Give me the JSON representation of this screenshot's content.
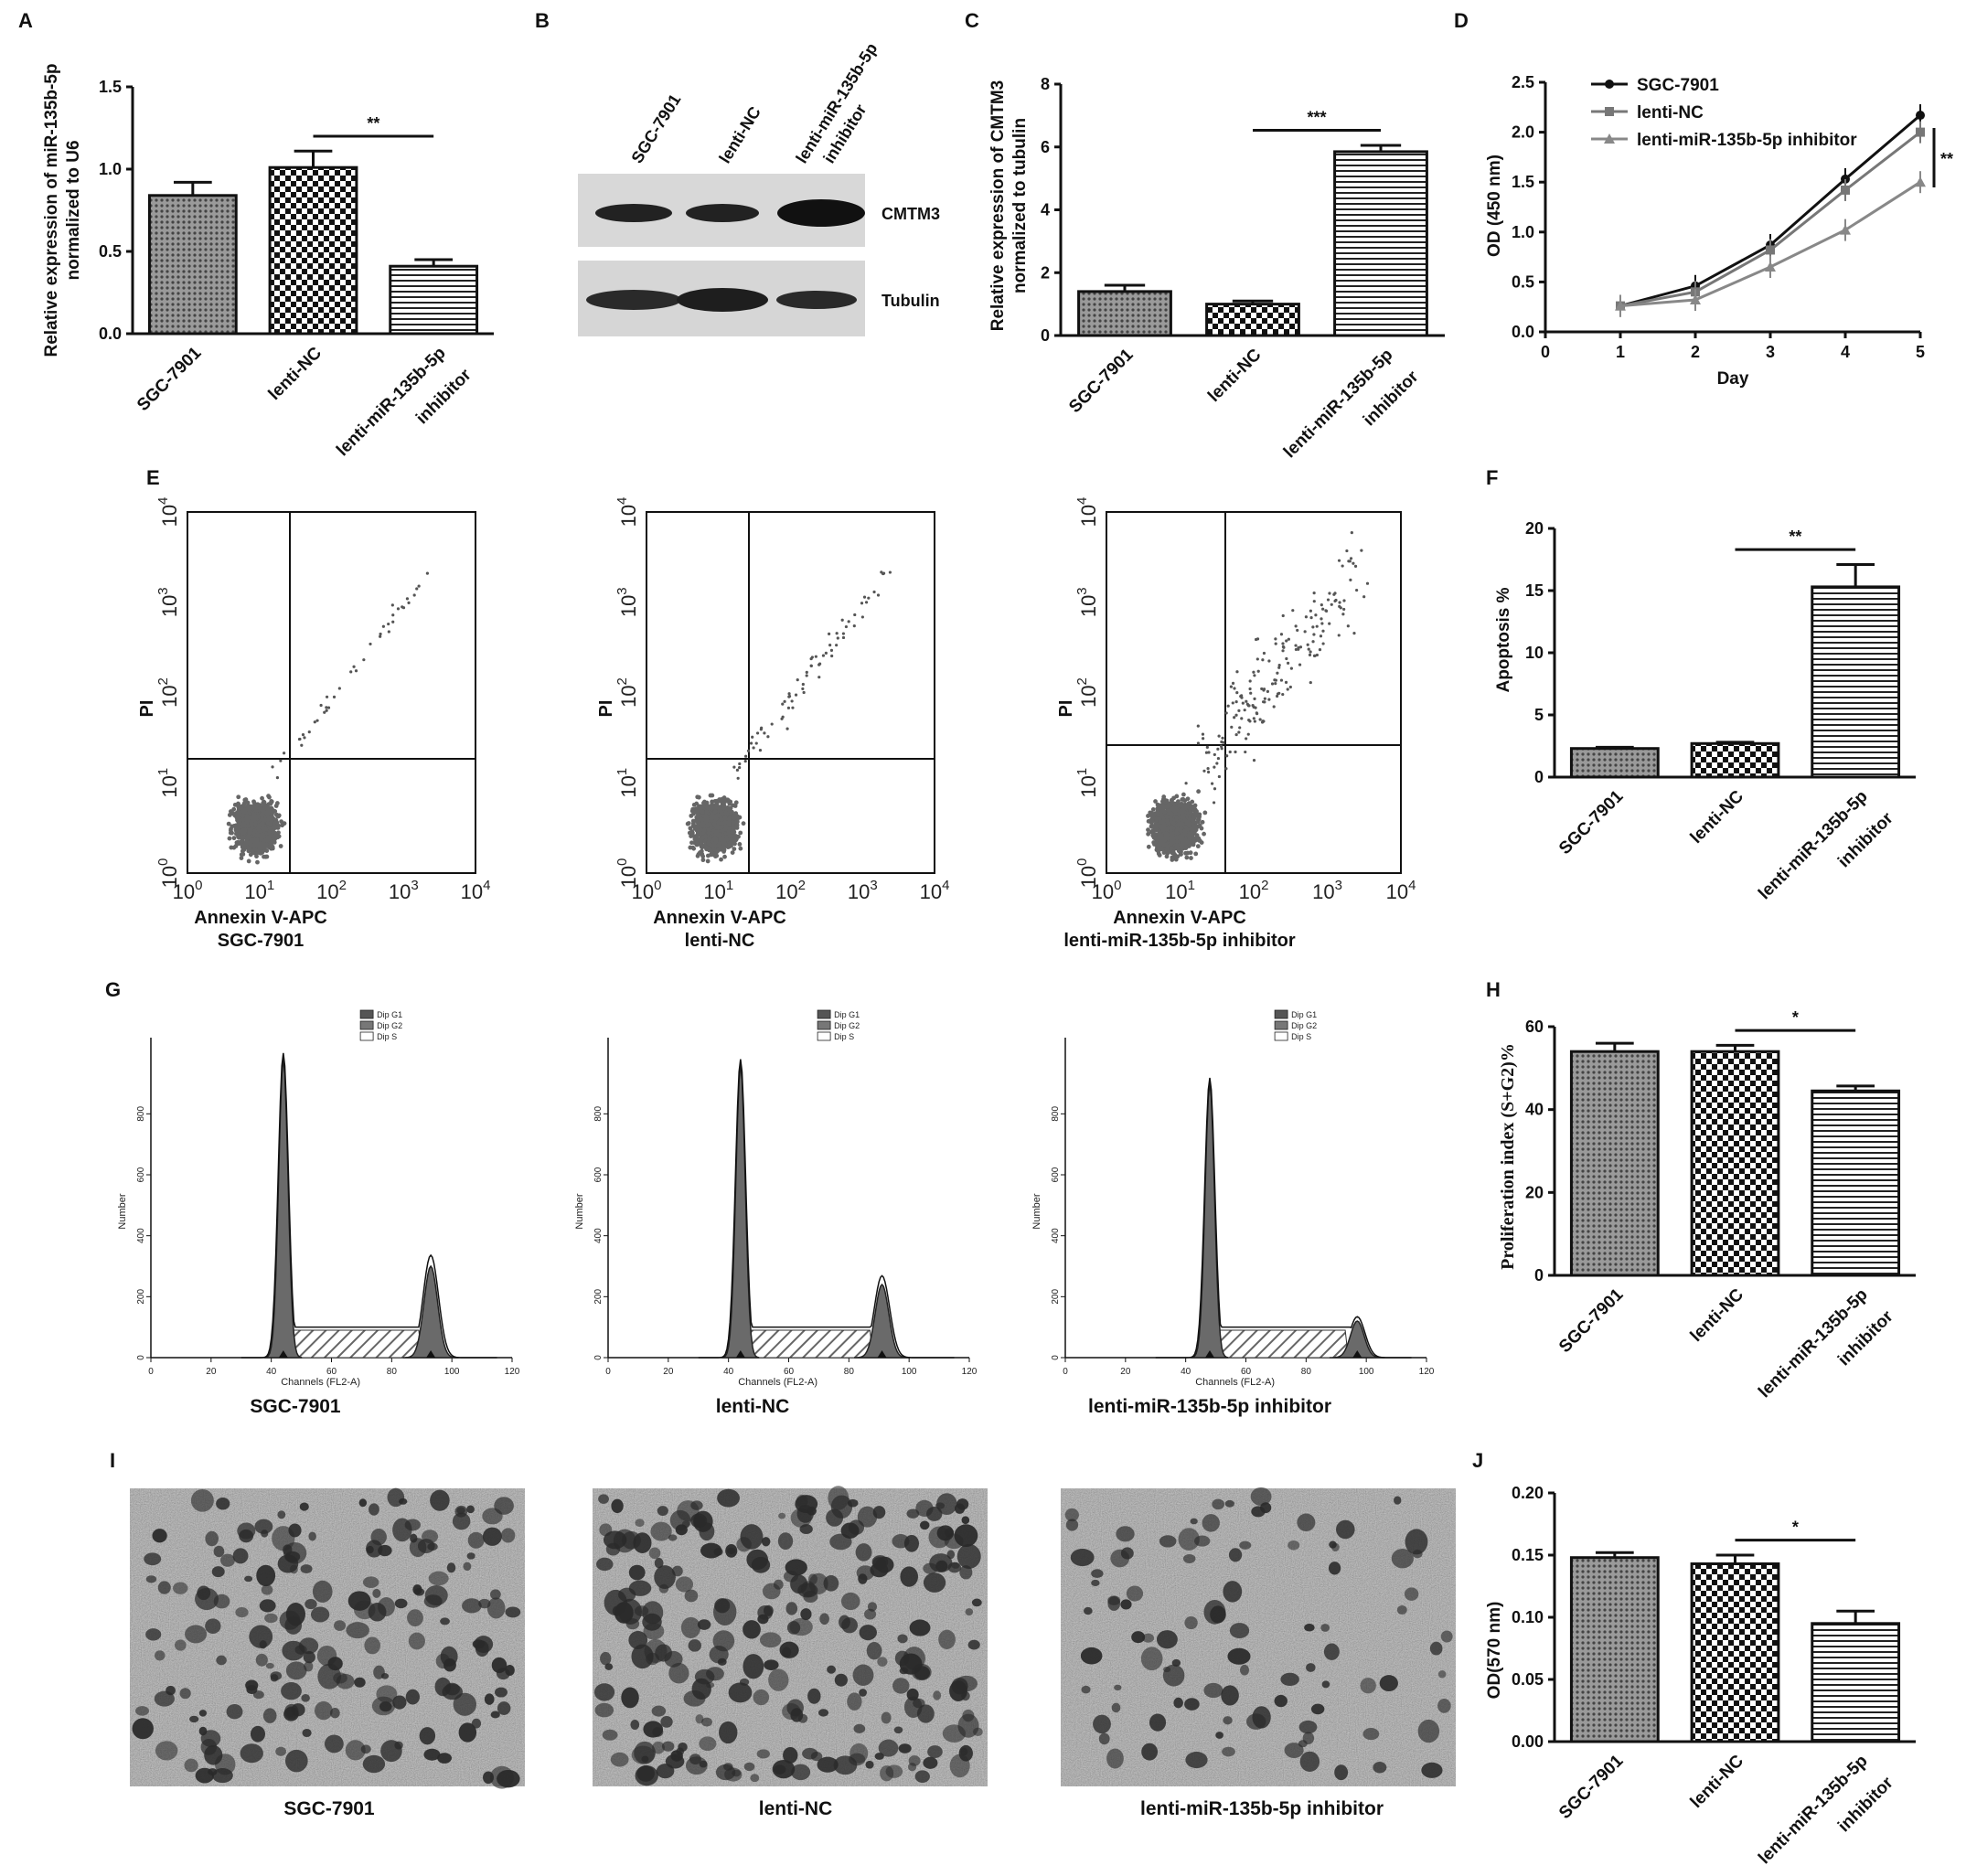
{
  "panel_letters": [
    "A",
    "B",
    "C",
    "D",
    "E",
    "F",
    "G",
    "H",
    "I",
    "J"
  ],
  "groups": [
    "SGC-7901",
    "lenti-NC",
    "lenti-miR-135b-5p",
    "inhibitor"
  ],
  "group_full": [
    "SGC-7901",
    "lenti-NC",
    "lenti-miR-135b-5p inhibitor"
  ],
  "panel_a": {
    "ylabel_1": "Relative expression of  miR-135b-5p",
    "ylabel_2": "normalized to U6",
    "sig": "**",
    "chart_data": {
      "type": "bar",
      "categories": [
        "SGC-7901",
        "lenti-NC",
        "lenti-miR-135b-5p inhibitor"
      ],
      "values": [
        0.84,
        1.01,
        0.41
      ],
      "errors": [
        0.08,
        0.1,
        0.04
      ],
      "ylim": [
        0,
        1.5
      ],
      "yticks": [
        "0.0",
        "0.5",
        "1.0",
        "1.5"
      ]
    }
  },
  "panel_b": {
    "lane_labels": [
      "SGC-7901",
      "lenti-NC",
      "lenti-miR-135b-5p",
      "inhibitor"
    ],
    "band_labels": [
      "CMTM3",
      "Tubulin"
    ]
  },
  "panel_c": {
    "ylabel_1": "Relative expression of  CMTM3",
    "ylabel_2": "normalized to tubulin",
    "sig": "***",
    "chart_data": {
      "type": "bar",
      "categories": [
        "SGC-7901",
        "lenti-NC",
        "lenti-miR-135b-5p inhibitor"
      ],
      "values": [
        1.4,
        1.0,
        5.85
      ],
      "errors": [
        0.2,
        0.1,
        0.2
      ],
      "ylim": [
        0,
        8
      ],
      "yticks": [
        "0",
        "2",
        "4",
        "6",
        "8"
      ]
    }
  },
  "panel_d": {
    "ylabel": "OD (450 nm)",
    "xlabel": "Day",
    "sig": "**",
    "legend": [
      "SGC-7901",
      "lenti-NC",
      "lenti-miR-135b-5p inhibitor"
    ],
    "chart_data": {
      "type": "line",
      "x": [
        1,
        2,
        3,
        4,
        5
      ],
      "xlim": [
        0,
        5
      ],
      "ylim": [
        0,
        2.5
      ],
      "xticks": [
        "0",
        "1",
        "2",
        "3",
        "4",
        "5"
      ],
      "yticks": [
        "0.0",
        "0.5",
        "1.0",
        "1.5",
        "2.0",
        "2.5"
      ],
      "series": [
        {
          "name": "SGC-7901",
          "values": [
            0.26,
            0.46,
            0.87,
            1.53,
            2.17
          ]
        },
        {
          "name": "lenti-NC",
          "values": [
            0.26,
            0.4,
            0.82,
            1.42,
            2.0
          ]
        },
        {
          "name": "lenti-miR-135b-5p inhibitor",
          "values": [
            0.26,
            0.32,
            0.65,
            1.02,
            1.5
          ]
        }
      ]
    }
  },
  "panel_e": {
    "ylabel": "PI",
    "xlabel": "Annexin V-APC",
    "exp_base": "10",
    "exps": [
      "0",
      "1",
      "2",
      "3",
      "4"
    ]
  },
  "panel_f": {
    "ylabel": "Apoptosis %",
    "sig": "**",
    "chart_data": {
      "type": "bar",
      "categories": [
        "SGC-7901",
        "lenti-NC",
        "lenti-miR-135b-5p inhibitor"
      ],
      "values": [
        2.3,
        2.7,
        15.3
      ],
      "errors": [
        0.1,
        0.1,
        1.8
      ],
      "ylim": [
        0,
        20
      ],
      "yticks": [
        "0",
        "5",
        "10",
        "15",
        "20"
      ]
    }
  },
  "panel_g": {
    "ylabel": "Number",
    "xlabel": "Channels (FL2-A)",
    "legend": [
      "Dip G1",
      "Dip G2",
      "Dip S"
    ],
    "xticks": [
      "0",
      "20",
      "40",
      "60",
      "80",
      "100",
      "120"
    ],
    "yticks": [
      "0",
      "200",
      "400",
      "600",
      "800"
    ]
  },
  "panel_h": {
    "ylabel": "Proliferation index (S+G2)%",
    "sig": "*",
    "chart_data": {
      "type": "bar",
      "categories": [
        "SGC-7901",
        "lenti-NC",
        "lenti-miR-135b-5p inhibitor"
      ],
      "values": [
        54,
        54,
        44.5
      ],
      "errors": [
        2,
        1.5,
        1.2
      ],
      "ylim": [
        0,
        60
      ],
      "yticks": [
        "0",
        "20",
        "40",
        "60"
      ]
    }
  },
  "panel_j": {
    "ylabel": "OD(570 nm)",
    "sig": "*",
    "chart_data": {
      "type": "bar",
      "categories": [
        "SGC-7901",
        "lenti-NC",
        "lenti-miR-135b-5p inhibitor"
      ],
      "values": [
        0.148,
        0.143,
        0.095
      ],
      "errors": [
        0.004,
        0.007,
        0.01
      ],
      "ylim": [
        0,
        0.2
      ],
      "yticks": [
        "0.00",
        "0.05",
        "0.10",
        "0.15",
        "0.20"
      ]
    }
  }
}
